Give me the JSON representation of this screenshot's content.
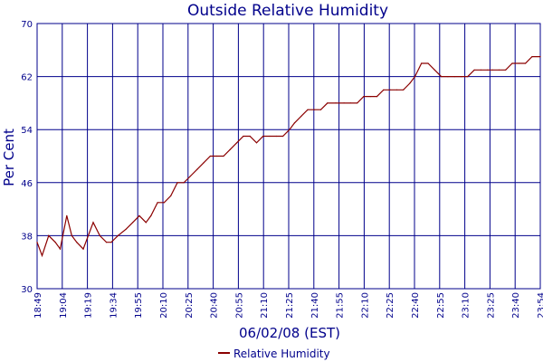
{
  "chart_data": {
    "type": "line",
    "title": "Outside Relative Humidity",
    "xlabel": "06/02/08 (EST)",
    "ylabel": "Per Cent",
    "x_start_label": "18:49",
    "x_end_label": "23:54",
    "x_tick_labels": [
      "18:49",
      "19:04",
      "19:19",
      "19:34",
      "19:55",
      "20:10",
      "20:25",
      "20:40",
      "20:55",
      "21:10",
      "21:25",
      "21:40",
      "21:55",
      "22:10",
      "22:25",
      "22:40",
      "22:55",
      "23:10",
      "23:25",
      "23:40",
      "23:54"
    ],
    "y_ticks": [
      30,
      38,
      46,
      54,
      62,
      70
    ],
    "ylim": [
      30,
      70
    ],
    "grid": true,
    "legend_position": "bottom-center",
    "series": [
      {
        "name": "Relative Humidity",
        "color": "#8B0000",
        "x": [
          "18:49",
          "18:52",
          "18:56",
          "19:00",
          "19:03",
          "19:07",
          "19:10",
          "19:13",
          "19:17",
          "19:20",
          "19:23",
          "19:27",
          "19:31",
          "19:34",
          "19:38",
          "19:43",
          "19:47",
          "19:51",
          "19:55",
          "19:58",
          "20:02",
          "20:06",
          "20:10",
          "20:14",
          "20:18",
          "20:22",
          "20:26",
          "20:30",
          "20:34",
          "20:38",
          "20:42",
          "20:46",
          "20:50",
          "20:54",
          "20:58",
          "21:02",
          "21:06",
          "21:10",
          "21:14",
          "21:18",
          "21:22",
          "21:25",
          "21:29",
          "21:33",
          "21:37",
          "21:41",
          "21:45",
          "21:50",
          "21:55",
          "21:59",
          "22:03",
          "22:07",
          "22:11",
          "22:15",
          "22:19",
          "22:23",
          "22:27",
          "22:31",
          "22:35",
          "22:38",
          "22:42",
          "22:46",
          "22:50",
          "22:54",
          "22:58",
          "23:02",
          "23:06",
          "23:10",
          "23:14",
          "23:18",
          "23:22",
          "23:25",
          "23:29",
          "23:33",
          "23:37",
          "23:41",
          "23:45",
          "23:49",
          "23:54"
        ],
        "values": [
          37,
          35,
          38,
          37,
          36,
          41,
          38,
          37,
          36,
          38,
          40,
          38,
          37,
          37,
          38,
          39,
          40,
          41,
          40,
          41,
          43,
          43,
          44,
          46,
          46,
          47,
          48,
          49,
          50,
          50,
          50,
          51,
          52,
          53,
          53,
          52,
          53,
          53,
          53,
          53,
          54,
          55,
          56,
          57,
          57,
          57,
          58,
          58,
          58,
          58,
          58,
          59,
          59,
          59,
          60,
          60,
          60,
          60,
          61,
          62,
          64,
          64,
          63,
          62,
          62,
          62,
          62,
          62,
          63,
          63,
          63,
          63,
          63,
          63,
          64,
          64,
          64,
          65,
          65
        ]
      }
    ]
  }
}
